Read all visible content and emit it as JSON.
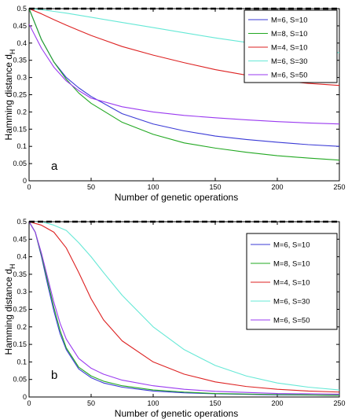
{
  "colors": {
    "blue": "#3a3ad6",
    "green": "#22a822",
    "red": "#dd2222",
    "cyan": "#66e8d6",
    "violet": "#9a3af0",
    "reference": "#000000",
    "axes": "#000000"
  },
  "chart_data": [
    {
      "type": "line",
      "panel_label": "a",
      "title": "",
      "xlabel": "Number of genetic operations",
      "ylabel": "Hamming distance d",
      "ylabel_subscript": "H",
      "xlim": [
        0,
        250
      ],
      "ylim": [
        0,
        0.5
      ],
      "xticks": [
        0,
        50,
        100,
        150,
        200,
        250
      ],
      "yticks": [
        0,
        0.05,
        0.1,
        0.15,
        0.2,
        0.25,
        0.3,
        0.35,
        0.4,
        0.45,
        0.5
      ],
      "grid": false,
      "legend_position": "top-right",
      "reference_line": {
        "y": 0.5,
        "style": "dashed",
        "color": "#000000"
      },
      "series": [
        {
          "name": "M=6, S=10",
          "color": "#3a3ad6",
          "x": [
            0,
            10,
            20,
            30,
            40,
            50,
            75,
            100,
            125,
            150,
            175,
            200,
            225,
            250
          ],
          "y": [
            0.5,
            0.41,
            0.345,
            0.3,
            0.27,
            0.245,
            0.195,
            0.165,
            0.145,
            0.13,
            0.12,
            0.112,
            0.105,
            0.1
          ]
        },
        {
          "name": "M=8, S=10",
          "color": "#22a822",
          "x": [
            0,
            10,
            20,
            30,
            40,
            50,
            75,
            100,
            125,
            150,
            175,
            200,
            225,
            250
          ],
          "y": [
            0.5,
            0.41,
            0.345,
            0.295,
            0.255,
            0.225,
            0.17,
            0.135,
            0.11,
            0.095,
            0.083,
            0.073,
            0.066,
            0.06
          ]
        },
        {
          "name": "M=4, S=10",
          "color": "#dd2222",
          "x": [
            0,
            10,
            20,
            30,
            40,
            50,
            75,
            100,
            125,
            150,
            175,
            200,
            225,
            250
          ],
          "y": [
            0.5,
            0.485,
            0.468,
            0.452,
            0.437,
            0.422,
            0.39,
            0.365,
            0.343,
            0.323,
            0.307,
            0.292,
            0.283,
            0.277
          ]
        },
        {
          "name": "M=6, S=30",
          "color": "#66e8d6",
          "x": [
            0,
            10,
            20,
            30,
            40,
            50,
            75,
            100,
            125,
            150,
            175,
            200,
            225,
            250
          ],
          "y": [
            0.5,
            0.497,
            0.492,
            0.487,
            0.481,
            0.475,
            0.46,
            0.445,
            0.43,
            0.415,
            0.402,
            0.39,
            0.38,
            0.372
          ]
        },
        {
          "name": "M=6, S=50",
          "color": "#9a3af0",
          "x": [
            0,
            10,
            20,
            30,
            40,
            50,
            75,
            100,
            125,
            150,
            175,
            200,
            225,
            250
          ],
          "y": [
            0.455,
            0.385,
            0.33,
            0.29,
            0.262,
            0.24,
            0.215,
            0.2,
            0.19,
            0.183,
            0.177,
            0.172,
            0.168,
            0.165
          ]
        }
      ]
    },
    {
      "type": "line",
      "panel_label": "b",
      "title": "",
      "xlabel": "Number of genetic operations",
      "ylabel": "Hamming distance d",
      "ylabel_subscript": "H",
      "xlim": [
        0,
        250
      ],
      "ylim": [
        0,
        0.5
      ],
      "xticks": [
        0,
        50,
        100,
        150,
        200,
        250
      ],
      "yticks": [
        0,
        0.05,
        0.1,
        0.15,
        0.2,
        0.25,
        0.3,
        0.35,
        0.4,
        0.45,
        0.5
      ],
      "grid": false,
      "legend_position": "top-right",
      "reference_line": {
        "y": 0.5,
        "style": "dashed",
        "color": "#000000"
      },
      "series": [
        {
          "name": "M=6, S=10",
          "color": "#3a3ad6",
          "x": [
            0,
            5,
            10,
            15,
            20,
            25,
            30,
            40,
            50,
            60,
            75,
            100,
            125,
            150,
            200,
            250
          ],
          "y": [
            0.5,
            0.47,
            0.4,
            0.32,
            0.245,
            0.18,
            0.135,
            0.08,
            0.055,
            0.04,
            0.028,
            0.017,
            0.012,
            0.009,
            0.006,
            0.005
          ]
        },
        {
          "name": "M=8, S=10",
          "color": "#22a822",
          "x": [
            0,
            5,
            10,
            15,
            20,
            25,
            30,
            40,
            50,
            60,
            75,
            100,
            125,
            150,
            200,
            250
          ],
          "y": [
            0.5,
            0.47,
            0.405,
            0.33,
            0.255,
            0.19,
            0.14,
            0.085,
            0.06,
            0.045,
            0.032,
            0.02,
            0.014,
            0.01,
            0.007,
            0.005
          ]
        },
        {
          "name": "M=4, S=10",
          "color": "#dd2222",
          "x": [
            0,
            10,
            20,
            30,
            40,
            50,
            60,
            75,
            100,
            125,
            150,
            175,
            200,
            225,
            250
          ],
          "y": [
            0.5,
            0.49,
            0.47,
            0.425,
            0.355,
            0.28,
            0.22,
            0.16,
            0.1,
            0.065,
            0.043,
            0.03,
            0.022,
            0.017,
            0.014
          ]
        },
        {
          "name": "M=6, S=30",
          "color": "#66e8d6",
          "x": [
            0,
            10,
            20,
            30,
            40,
            50,
            60,
            75,
            100,
            125,
            150,
            175,
            200,
            225,
            250
          ],
          "y": [
            0.5,
            0.5,
            0.49,
            0.475,
            0.44,
            0.4,
            0.355,
            0.29,
            0.2,
            0.135,
            0.09,
            0.06,
            0.04,
            0.028,
            0.02
          ]
        },
        {
          "name": "M=6, S=50",
          "color": "#9a3af0",
          "x": [
            0,
            5,
            10,
            15,
            20,
            25,
            30,
            40,
            50,
            60,
            75,
            100,
            125,
            150,
            200,
            250
          ],
          "y": [
            0.5,
            0.47,
            0.41,
            0.34,
            0.27,
            0.21,
            0.165,
            0.11,
            0.082,
            0.065,
            0.048,
            0.032,
            0.022,
            0.016,
            0.01,
            0.008
          ]
        }
      ]
    }
  ]
}
